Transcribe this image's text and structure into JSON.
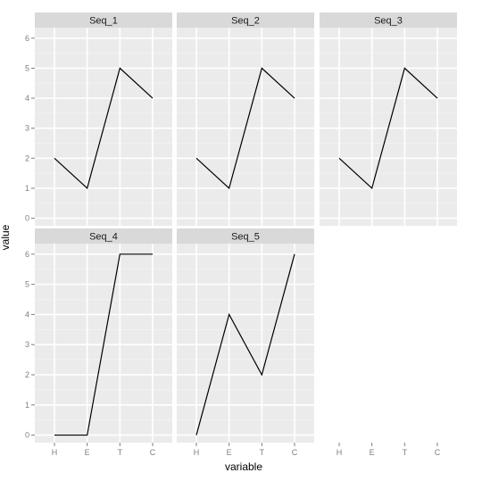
{
  "chart_data": {
    "type": "line",
    "facet": "wrap",
    "xlabel": "variable",
    "ylabel": "value",
    "categories": [
      "H",
      "E",
      "T",
      "C"
    ],
    "ylim": [
      -0.25,
      6.35
    ],
    "yticks": [
      0,
      1,
      2,
      3,
      4,
      5,
      6
    ],
    "grid": true,
    "series": [
      {
        "name": "Seq_1",
        "values": [
          2,
          1,
          5,
          4
        ]
      },
      {
        "name": "Seq_2",
        "values": [
          2,
          1,
          5,
          4
        ]
      },
      {
        "name": "Seq_3",
        "values": [
          2,
          1,
          5,
          4
        ]
      },
      {
        "name": "Seq_4",
        "values": [
          0,
          0,
          6,
          6
        ]
      },
      {
        "name": "Seq_5",
        "values": [
          0,
          4,
          2,
          6
        ]
      }
    ]
  },
  "colors": {
    "panel_bg": "#ebebeb",
    "strip_bg": "#d9d9d9",
    "grid_major": "#ffffff",
    "grid_minor": "#f3f3f3",
    "line": "#000000"
  }
}
